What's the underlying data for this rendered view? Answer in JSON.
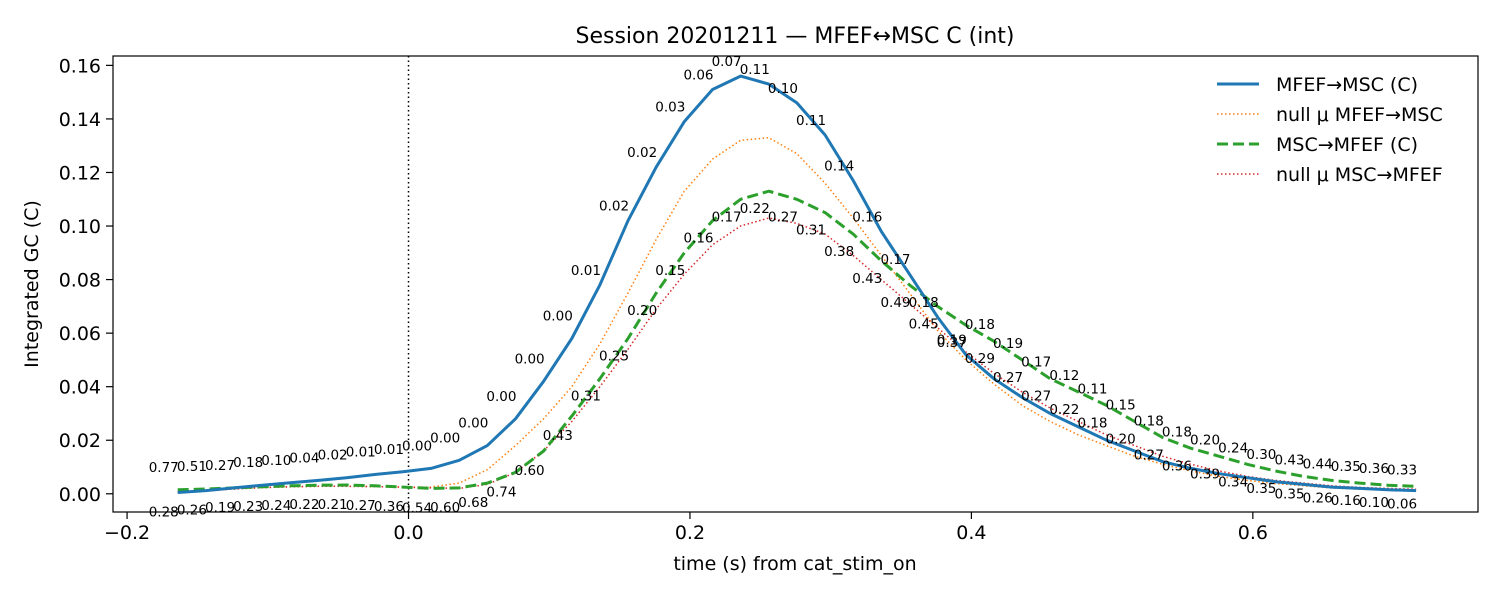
{
  "chart_data": {
    "type": "line",
    "title": "Session 20201211 — MFEF↔MSC C (int)",
    "xlabel": "time (s) from cat_stim_on",
    "ylabel": "Integrated GC (C)",
    "xlim": [
      -0.21,
      0.76
    ],
    "ylim": [
      -0.0068,
      0.1635
    ],
    "xticks": [
      -0.2,
      0.0,
      0.2,
      0.4,
      0.6
    ],
    "xtick_labels": [
      "−0.2",
      "0.0",
      "0.2",
      "0.4",
      "0.6"
    ],
    "yticks": [
      0.0,
      0.02,
      0.04,
      0.06,
      0.08,
      0.1,
      0.12,
      0.14,
      0.16
    ],
    "ytick_labels": [
      "0.00",
      "0.02",
      "0.04",
      "0.06",
      "0.08",
      "0.10",
      "0.12",
      "0.14",
      "0.16"
    ],
    "vline_x": 0.0,
    "grid": false,
    "legend_position": "top-right",
    "x": [
      -0.164,
      -0.144,
      -0.124,
      -0.104,
      -0.084,
      -0.064,
      -0.044,
      -0.024,
      -0.004,
      0.016,
      0.036,
      0.056,
      0.076,
      0.096,
      0.116,
      0.136,
      0.156,
      0.176,
      0.196,
      0.216,
      0.236,
      0.256,
      0.276,
      0.296,
      0.316,
      0.336,
      0.356,
      0.376,
      0.396,
      0.416,
      0.436,
      0.456,
      0.476,
      0.496,
      0.516,
      0.536,
      0.556,
      0.576,
      0.596,
      0.616,
      0.636,
      0.656,
      0.676,
      0.696,
      0.716
    ],
    "series": [
      {
        "name": "MFEF→MSC (C)",
        "color": "#1f77b4",
        "style": "solid",
        "values": [
          0.0005,
          0.0012,
          0.0022,
          0.0032,
          0.0041,
          0.005,
          0.006,
          0.0072,
          0.0082,
          0.0095,
          0.0125,
          0.018,
          0.028,
          0.042,
          0.058,
          0.078,
          0.102,
          0.122,
          0.139,
          0.151,
          0.156,
          0.153,
          0.146,
          0.134,
          0.117,
          0.098,
          0.082,
          0.066,
          0.052,
          0.043,
          0.036,
          0.03,
          0.025,
          0.02,
          0.016,
          0.012,
          0.0095,
          0.0075,
          0.006,
          0.0045,
          0.0035,
          0.0025,
          0.002,
          0.0015,
          0.0012
        ],
        "labels": [
          "0.28",
          "0.26",
          "0.19",
          "0.23",
          "0.24",
          "0.22",
          "0.21",
          "0.27",
          "0.36",
          "0.54",
          "0.60",
          "0.68",
          "0.74",
          "0.60",
          "0.43",
          "0.31",
          "0.25",
          "0.20",
          "0.15",
          "0.16",
          "0.17",
          "0.22",
          "0.27",
          "0.31",
          "0.38",
          "0.43",
          "0.49",
          "0.45",
          "0.37",
          "0.29",
          "0.27",
          "0.27",
          "0.22",
          "0.18",
          "0.20",
          "0.27",
          "0.36",
          "0.39",
          "0.34",
          "0.35",
          "0.35",
          "0.26",
          "0.16",
          "0.10",
          "0.06"
        ]
      },
      {
        "name": "null μ MFEF→MSC",
        "color": "#ff7f0e",
        "style": "dotted",
        "values": [
          0.0008,
          0.0012,
          0.0018,
          0.0023,
          0.0026,
          0.0028,
          0.0028,
          0.0027,
          0.0025,
          0.0025,
          0.004,
          0.009,
          0.018,
          0.028,
          0.04,
          0.056,
          0.075,
          0.095,
          0.113,
          0.125,
          0.132,
          0.133,
          0.127,
          0.116,
          0.103,
          0.089,
          0.075,
          0.061,
          0.05,
          0.041,
          0.033,
          0.027,
          0.022,
          0.018,
          0.014,
          0.011,
          0.0085,
          0.0065,
          0.005,
          0.0038,
          0.003,
          0.0022,
          0.0017,
          0.0014,
          0.0012
        ]
      },
      {
        "name": "MSC→MFEF (C)",
        "color": "#2ca02c",
        "style": "dashed",
        "values": [
          0.0015,
          0.0018,
          0.0022,
          0.0026,
          0.003,
          0.0032,
          0.0033,
          0.003,
          0.0025,
          0.002,
          0.0022,
          0.004,
          0.008,
          0.016,
          0.029,
          0.043,
          0.058,
          0.075,
          0.09,
          0.102,
          0.11,
          0.113,
          0.11,
          0.105,
          0.097,
          0.087,
          0.078,
          0.07,
          0.063,
          0.057,
          0.05,
          0.043,
          0.038,
          0.033,
          0.027,
          0.021,
          0.017,
          0.014,
          0.011,
          0.0085,
          0.0065,
          0.005,
          0.004,
          0.0032,
          0.0028
        ],
        "labels": [
          "0.77",
          "0.51",
          "0.27",
          "0.18",
          "0.10",
          "0.04",
          "0.02",
          "0.01",
          "0.01",
          "0.00",
          "0.00",
          "0.00",
          "0.00",
          "0.00",
          "0.00",
          "0.01",
          "0.02",
          "0.02",
          "0.03",
          "0.06",
          "0.07",
          "0.11",
          "0.10",
          "0.11",
          "0.14",
          "0.16",
          "0.17",
          "0.18",
          "0.19",
          "0.18",
          "0.19",
          "0.17",
          "0.12",
          "0.11",
          "0.15",
          "0.18",
          "0.18",
          "0.20",
          "0.24",
          "0.30",
          "0.43",
          "0.44",
          "0.35",
          "0.36",
          "0.33"
        ]
      },
      {
        "name": "null μ MSC→MFEF",
        "color": "#d62728",
        "style": "dotted",
        "values": [
          0.0008,
          0.0012,
          0.0018,
          0.0023,
          0.0026,
          0.0028,
          0.0028,
          0.0027,
          0.0025,
          0.0022,
          0.002,
          0.0035,
          0.008,
          0.016,
          0.027,
          0.04,
          0.054,
          0.069,
          0.082,
          0.093,
          0.1,
          0.103,
          0.101,
          0.097,
          0.089,
          0.08,
          0.071,
          0.062,
          0.053,
          0.045,
          0.038,
          0.032,
          0.027,
          0.022,
          0.018,
          0.014,
          0.011,
          0.0085,
          0.0065,
          0.005,
          0.004,
          0.003,
          0.0024,
          0.002,
          0.0017
        ]
      }
    ]
  }
}
